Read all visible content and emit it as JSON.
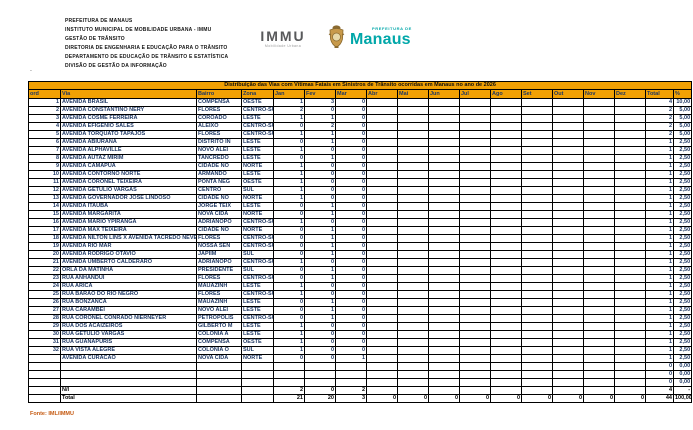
{
  "header": {
    "org_lines": [
      "PREFEITURA DE MANAUS",
      "INSTITUTO MUNICIPAL DE MOBILIDADE URBANA - IMMU",
      "GESTÃO DE TRÂNSITO",
      "DIRETORIA DE ENGENHARIA E EDUCAÇÃO PARA O TRÂNSITO",
      "DEPARTAMENTO DE EDUCAÇÃO DE TRÂNSITO E ESTATÍSTICA",
      "DIVISÃO DE GESTÃO DA INFORMAÇÃO"
    ],
    "immu_logo": {
      "name": "IMMU",
      "subtitle": "Mobilidade Urbana"
    },
    "manaus_logo": {
      "line1": "PREFEITURA DE",
      "line2": "Manaus"
    },
    "stray_dot": "."
  },
  "colors": {
    "accent_orange": "#f2a104",
    "teal": "#00a7a9",
    "navy_text": "#1f3864",
    "fonte_brown": "#c55a11",
    "crest_gold": "#c89a4b"
  },
  "table": {
    "title": "Distribuição das Vias com Vítimas Fatais em Sinistros de Trânsito ocorridas em Manaus no ano de 2026",
    "columns": [
      "ord",
      "Via",
      "Bairro",
      "Zona",
      "Jan",
      "Fev",
      "Mar",
      "Abr",
      "Mai",
      "Jun",
      "Jul",
      "Ago",
      "Set",
      "Out",
      "Nov",
      "Dez",
      "Total",
      "%"
    ],
    "rows": [
      {
        "ord": "1",
        "via": "AVENIDA BRASIL",
        "bairro": "COMPENSA",
        "zona": "OESTE",
        "jan": "1",
        "fev": "3",
        "mar": "0",
        "total": "4",
        "pct": "10,00"
      },
      {
        "ord": "2",
        "via": "AVENIDA CONSTANTINO NERY",
        "bairro": "FLORES",
        "zona": "CENTRO-SU",
        "jan": "2",
        "fev": "0",
        "mar": "0",
        "total": "2",
        "pct": "5,00"
      },
      {
        "ord": "3",
        "via": "AVENIDA COSME FERREIRA",
        "bairro": "COROADO",
        "zona": "LESTE",
        "jan": "1",
        "fev": "1",
        "mar": "0",
        "total": "2",
        "pct": "5,00"
      },
      {
        "ord": "4",
        "via": "AVENIDA EFIGENIO SALES",
        "bairro": "ALEIXO",
        "zona": "CENTRO-SU",
        "jan": "0",
        "fev": "2",
        "mar": "0",
        "total": "2",
        "pct": "5,00"
      },
      {
        "ord": "5",
        "via": "AVENIDA TORQUATO TAPAJOS",
        "bairro": "FLORES",
        "zona": "CENTRO-SU",
        "jan": "1",
        "fev": "1",
        "mar": "0",
        "total": "2",
        "pct": "5,00"
      },
      {
        "ord": "6",
        "via": "AVENIDA ABIURANA",
        "bairro": "DISTRITO IN",
        "zona": "LESTE",
        "jan": "0",
        "fev": "1",
        "mar": "0",
        "total": "1",
        "pct": "2,50"
      },
      {
        "ord": "7",
        "via": "AVENIDA ALPHAVILLE",
        "bairro": "NOVO ALEI",
        "zona": "LESTE",
        "jan": "1",
        "fev": "0",
        "mar": "0",
        "total": "1",
        "pct": "2,50"
      },
      {
        "ord": "8",
        "via": "AVENIDA AUTAZ MIRIM",
        "bairro": "TANCREDO",
        "zona": "LESTE",
        "jan": "0",
        "fev": "1",
        "mar": "0",
        "total": "1",
        "pct": "2,50"
      },
      {
        "ord": "9",
        "via": "AVENIDA CAMAPUA",
        "bairro": "CIDADE NO",
        "zona": "NORTE",
        "jan": "1",
        "fev": "0",
        "mar": "0",
        "total": "1",
        "pct": "2,50"
      },
      {
        "ord": "10",
        "via": "AVENIDA CONTORNO NORTE",
        "bairro": "ARMANDO",
        "zona": "LESTE",
        "jan": "1",
        "fev": "0",
        "mar": "0",
        "total": "1",
        "pct": "2,50"
      },
      {
        "ord": "11",
        "via": "AVENIDA CORONEL TEIXEIRA",
        "bairro": "PONTA NEG",
        "zona": "OESTE",
        "jan": "1",
        "fev": "0",
        "mar": "0",
        "total": "1",
        "pct": "2,50"
      },
      {
        "ord": "12",
        "via": "AVENIDA GETULIO VARGAS",
        "bairro": "CENTRO",
        "zona": "SUL",
        "jan": "1",
        "fev": "0",
        "mar": "0",
        "total": "1",
        "pct": "2,50"
      },
      {
        "ord": "13",
        "via": "AVENIDA GOVERNADOR JOSE LINDOSO",
        "bairro": "CIDADE NO",
        "zona": "NORTE",
        "jan": "1",
        "fev": "0",
        "mar": "0",
        "total": "1",
        "pct": "2,50"
      },
      {
        "ord": "14",
        "via": "AVENIDA ITAUBA",
        "bairro": "JORGE TEIX",
        "zona": "LESTE",
        "jan": "0",
        "fev": "1",
        "mar": "0",
        "total": "1",
        "pct": "2,50"
      },
      {
        "ord": "15",
        "via": "AVENIDA MARGARITA",
        "bairro": "NOVA CIDA",
        "zona": "NORTE",
        "jan": "0",
        "fev": "1",
        "mar": "0",
        "total": "1",
        "pct": "2,50"
      },
      {
        "ord": "16",
        "via": "AVENIDA MARIO YPIRANGA",
        "bairro": "ADRIANOPO",
        "zona": "CENTRO-SU",
        "jan": "1",
        "fev": "0",
        "mar": "0",
        "total": "1",
        "pct": "2,50"
      },
      {
        "ord": "17",
        "via": "AVENIDA MAX TEIXEIRA",
        "bairro": "CIDADE NO",
        "zona": "NORTE",
        "jan": "0",
        "fev": "1",
        "mar": "0",
        "total": "1",
        "pct": "2,50"
      },
      {
        "ord": "18",
        "via": "AVENIDA NILTON LINS X AVENIDA TACREDO NEVES",
        "bairro": "FLORES",
        "zona": "CENTRO-SU",
        "jan": "0",
        "fev": "1",
        "mar": "0",
        "total": "1",
        "pct": "2,50"
      },
      {
        "ord": "19",
        "via": "AVENIDA RIO MAR",
        "bairro": "NOSSA SEN",
        "zona": "CENTRO-SU",
        "jan": "0",
        "fev": "1",
        "mar": "0",
        "total": "1",
        "pct": "2,50"
      },
      {
        "ord": "20",
        "via": "AVENIDA RODRIGO OTAVIO",
        "bairro": "JAPIIM",
        "zona": "SUL",
        "jan": "0",
        "fev": "1",
        "mar": "0",
        "total": "1",
        "pct": "2,50"
      },
      {
        "ord": "21",
        "via": "AVENIDA UMBERTO CALDERARO",
        "bairro": "ADRIANOPO",
        "zona": "CENTRO-SU",
        "jan": "1",
        "fev": "0",
        "mar": "0",
        "total": "1",
        "pct": "2,50"
      },
      {
        "ord": "22",
        "via": "ORLA DA MATINHA",
        "bairro": "PRESIDENTE",
        "zona": "SUL",
        "jan": "0",
        "fev": "1",
        "mar": "0",
        "total": "1",
        "pct": "2,50"
      },
      {
        "ord": "23",
        "via": "RUA ANHANDUI",
        "bairro": "FLORES",
        "zona": "CENTRO-SU",
        "jan": "0",
        "fev": "1",
        "mar": "0",
        "total": "1",
        "pct": "2,50"
      },
      {
        "ord": "24",
        "via": "RUA ARICA",
        "bairro": "MAUAZINH",
        "zona": "LESTE",
        "jan": "1",
        "fev": "0",
        "mar": "0",
        "total": "1",
        "pct": "2,50"
      },
      {
        "ord": "25",
        "via": "RUA BARAO DO RIO NEGRO",
        "bairro": "FLORES",
        "zona": "CENTRO-SU",
        "jan": "1",
        "fev": "0",
        "mar": "0",
        "total": "1",
        "pct": "2,50"
      },
      {
        "ord": "26",
        "via": "RUA BONZANCA",
        "bairro": "MAUAZINH",
        "zona": "LESTE",
        "jan": "0",
        "fev": "1",
        "mar": "0",
        "total": "1",
        "pct": "2,50"
      },
      {
        "ord": "27",
        "via": "RUA CARAMBEI",
        "bairro": "NOVO ALEI",
        "zona": "LESTE",
        "jan": "0",
        "fev": "1",
        "mar": "0",
        "total": "1",
        "pct": "2,50"
      },
      {
        "ord": "28",
        "via": "RUA CORONEL CONRADO NIERNEYER",
        "bairro": "PETROPOLIS",
        "zona": "CENTRO-SU",
        "jan": "0",
        "fev": "1",
        "mar": "0",
        "total": "1",
        "pct": "2,50"
      },
      {
        "ord": "29",
        "via": "RUA DOS ACAIZEIROS",
        "bairro": "GILBERTO M",
        "zona": "LESTE",
        "jan": "1",
        "fev": "0",
        "mar": "0",
        "total": "1",
        "pct": "2,50"
      },
      {
        "ord": "30",
        "via": "RUA GETULIO VARGAS",
        "bairro": "COLONIA A",
        "zona": "LESTE",
        "jan": "1",
        "fev": "0",
        "mar": "0",
        "total": "1",
        "pct": "2,50"
      },
      {
        "ord": "31",
        "via": "RUA GUANAPURIS",
        "bairro": "COMPENSA",
        "zona": "OESTE",
        "jan": "1",
        "fev": "0",
        "mar": "0",
        "total": "1",
        "pct": "2,50"
      },
      {
        "ord": "32",
        "via": "RUA VISTA ALEGRE",
        "bairro": "COLONIA O",
        "zona": "SUL",
        "jan": "1",
        "fev": "0",
        "mar": "0",
        "total": "1",
        "pct": "2,50"
      },
      {
        "ord": "",
        "via": "AVENIDA CURACAO",
        "bairro": "NOVA CIDA",
        "zona": "NORTE",
        "jan": "0",
        "fev": "0",
        "mar": "1",
        "total": "1",
        "pct": "2,50"
      },
      {
        "kind": "empty",
        "total": "0",
        "pct": "0,00"
      },
      {
        "kind": "empty",
        "total": "0",
        "pct": "0,00"
      },
      {
        "kind": "empty",
        "total": "0",
        "pct": "0,00"
      },
      {
        "kind": "summary",
        "via": "N/I",
        "jan": "2",
        "fev": "0",
        "mar": "2",
        "total": "4",
        "pct": "-"
      },
      {
        "kind": "summary",
        "via": "Total",
        "jan": "21",
        "fev": "20",
        "mar": "3",
        "abr": "0",
        "mai": "0",
        "jun": "0",
        "jul": "0",
        "ago": "0",
        "set": "0",
        "out": "0",
        "nov": "0",
        "dez": "0",
        "total": "44",
        "pct": "100,00"
      }
    ]
  },
  "footer": {
    "fonte": "Fonte: IML/IMMU"
  }
}
